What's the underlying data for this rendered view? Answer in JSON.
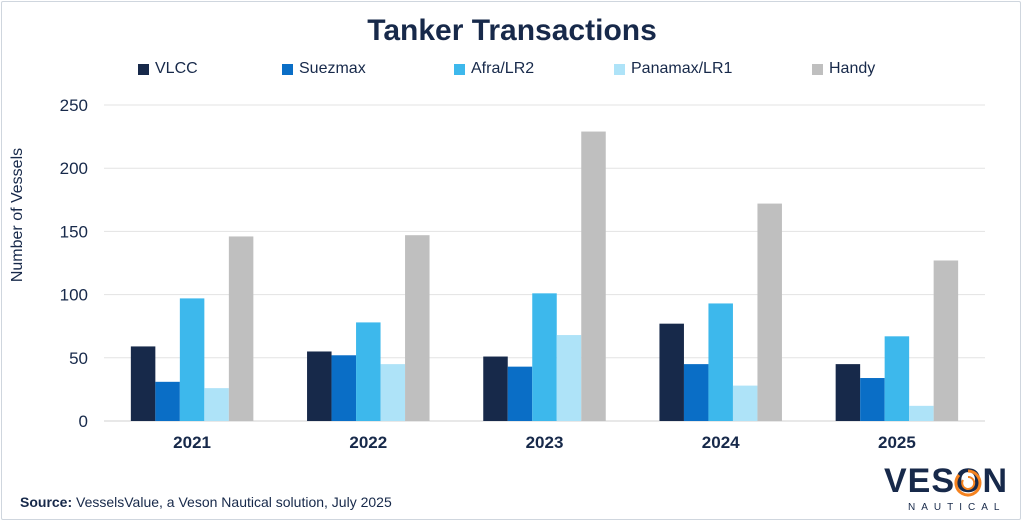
{
  "chart_data": {
    "type": "bar",
    "title": "Tanker Transactions",
    "ylabel": "Number of Vessels",
    "xlabel": "",
    "categories": [
      "2021",
      "2022",
      "2023",
      "2024",
      "2025"
    ],
    "ylim": [
      0,
      250
    ],
    "yticks": [
      "0",
      "50",
      "100",
      "150",
      "200",
      "250"
    ],
    "grid": true,
    "legend_position": "top",
    "series": [
      {
        "name": "VLCC",
        "color": "#17294a",
        "values": [
          59,
          55,
          51,
          77,
          45
        ]
      },
      {
        "name": "Suezmax",
        "color": "#0a6ec6",
        "values": [
          31,
          52,
          43,
          45,
          34
        ]
      },
      {
        "name": "Afra/LR2",
        "color": "#3db8ec",
        "values": [
          97,
          78,
          101,
          93,
          67
        ]
      },
      {
        "name": "Panamax/LR1",
        "color": "#aee3f8",
        "values": [
          26,
          45,
          68,
          28,
          12
        ]
      },
      {
        "name": "Handy",
        "color": "#bfbfbf",
        "values": [
          146,
          147,
          229,
          172,
          127
        ]
      }
    ]
  },
  "source": {
    "label": "Source:",
    "text": " VesselsValue, a Veson Nautical solution, July 2025"
  },
  "logo": {
    "name": "VESON",
    "sub": "NAUTICAL",
    "accent_color": "#f5821f"
  }
}
